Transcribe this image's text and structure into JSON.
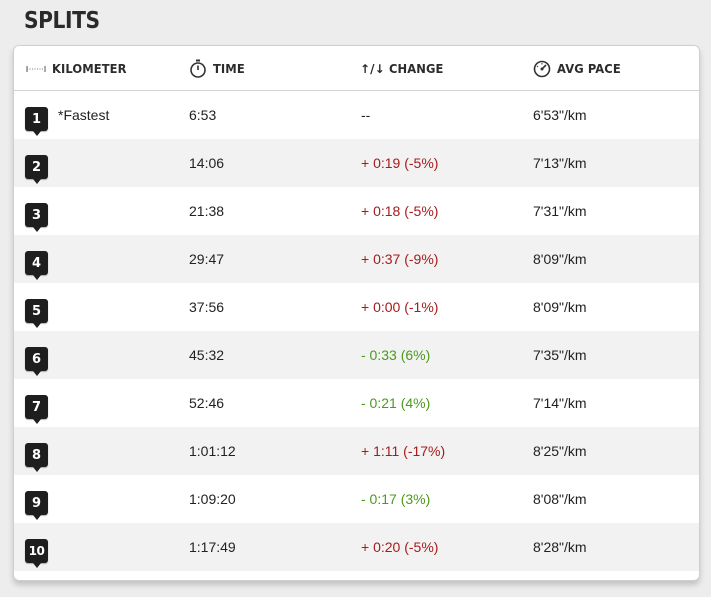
{
  "title": "SPLITS",
  "headers": {
    "kilometer": "KILOMETER",
    "time": "TIME",
    "change": "CHANGE",
    "change_arrows": "↑/↓",
    "avg_pace": "AVG PACE"
  },
  "colors": {
    "slower": "#a41c1c",
    "faster": "#4c9a1e",
    "marker": "#1e1e1e"
  },
  "splits": [
    {
      "km": "1",
      "note": "*Fastest",
      "time": "6:53",
      "change": "--",
      "direction": "neutral",
      "pace": "6'53\"/km"
    },
    {
      "km": "2",
      "note": "",
      "time": "14:06",
      "change": "+ 0:19 (-5%)",
      "direction": "slower",
      "pace": "7'13\"/km"
    },
    {
      "km": "3",
      "note": "",
      "time": "21:38",
      "change": "+ 0:18 (-5%)",
      "direction": "slower",
      "pace": "7'31\"/km"
    },
    {
      "km": "4",
      "note": "",
      "time": "29:47",
      "change": "+ 0:37 (-9%)",
      "direction": "slower",
      "pace": "8'09\"/km"
    },
    {
      "km": "5",
      "note": "",
      "time": "37:56",
      "change": "+ 0:00 (-1%)",
      "direction": "slower",
      "pace": "8'09\"/km"
    },
    {
      "km": "6",
      "note": "",
      "time": "45:32",
      "change": "- 0:33 (6%)",
      "direction": "faster",
      "pace": "7'35\"/km"
    },
    {
      "km": "7",
      "note": "",
      "time": "52:46",
      "change": "- 0:21 (4%)",
      "direction": "faster",
      "pace": "7'14\"/km"
    },
    {
      "km": "8",
      "note": "",
      "time": "1:01:12",
      "change": "+ 1:11 (-17%)",
      "direction": "slower",
      "pace": "8'25\"/km"
    },
    {
      "km": "9",
      "note": "",
      "time": "1:09:20",
      "change": "- 0:17 (3%)",
      "direction": "faster",
      "pace": "8'08\"/km"
    },
    {
      "km": "10",
      "note": "",
      "time": "1:17:49",
      "change": "+ 0:20 (-5%)",
      "direction": "slower",
      "pace": "8'28\"/km"
    }
  ]
}
